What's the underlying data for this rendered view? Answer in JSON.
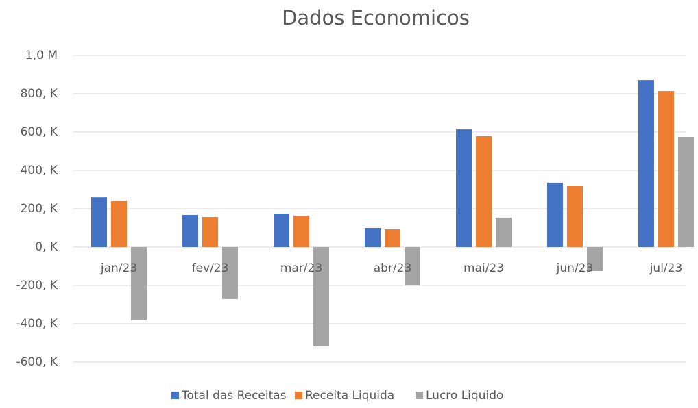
{
  "chart_data": {
    "type": "bar",
    "title": "Dados Economicos",
    "categories": [
      "jan/23",
      "fev/23",
      "mar/23",
      "abr/23",
      "mai/23",
      "jun/23",
      "jul/23"
    ],
    "series": [
      {
        "name": "Total das Receitas",
        "color": "#4472c4",
        "values": [
          260000,
          168000,
          175000,
          100000,
          614000,
          336000,
          871000
        ]
      },
      {
        "name": "Receita Liquida",
        "color": "#ed7d31",
        "values": [
          243000,
          157000,
          164000,
          93000,
          579000,
          318000,
          814000
        ]
      },
      {
        "name": "Lucro Liquido",
        "color": "#a5a5a5",
        "values": [
          -382000,
          -271000,
          -518000,
          -200000,
          154000,
          -125000,
          575000
        ]
      }
    ],
    "ylim": [
      -600000,
      1000000
    ],
    "yticks": [
      {
        "value": -600000,
        "label": "-600, K"
      },
      {
        "value": -400000,
        "label": "-400, K"
      },
      {
        "value": -200000,
        "label": "-200, K"
      },
      {
        "value": 0,
        "label": "0, K"
      },
      {
        "value": 200000,
        "label": "200, K"
      },
      {
        "value": 400000,
        "label": "400, K"
      },
      {
        "value": 600000,
        "label": "600, K"
      },
      {
        "value": 800000,
        "label": "800, K"
      },
      {
        "value": 1000000,
        "label": "1,0 M"
      }
    ],
    "grid": true,
    "legend": "bottom"
  }
}
